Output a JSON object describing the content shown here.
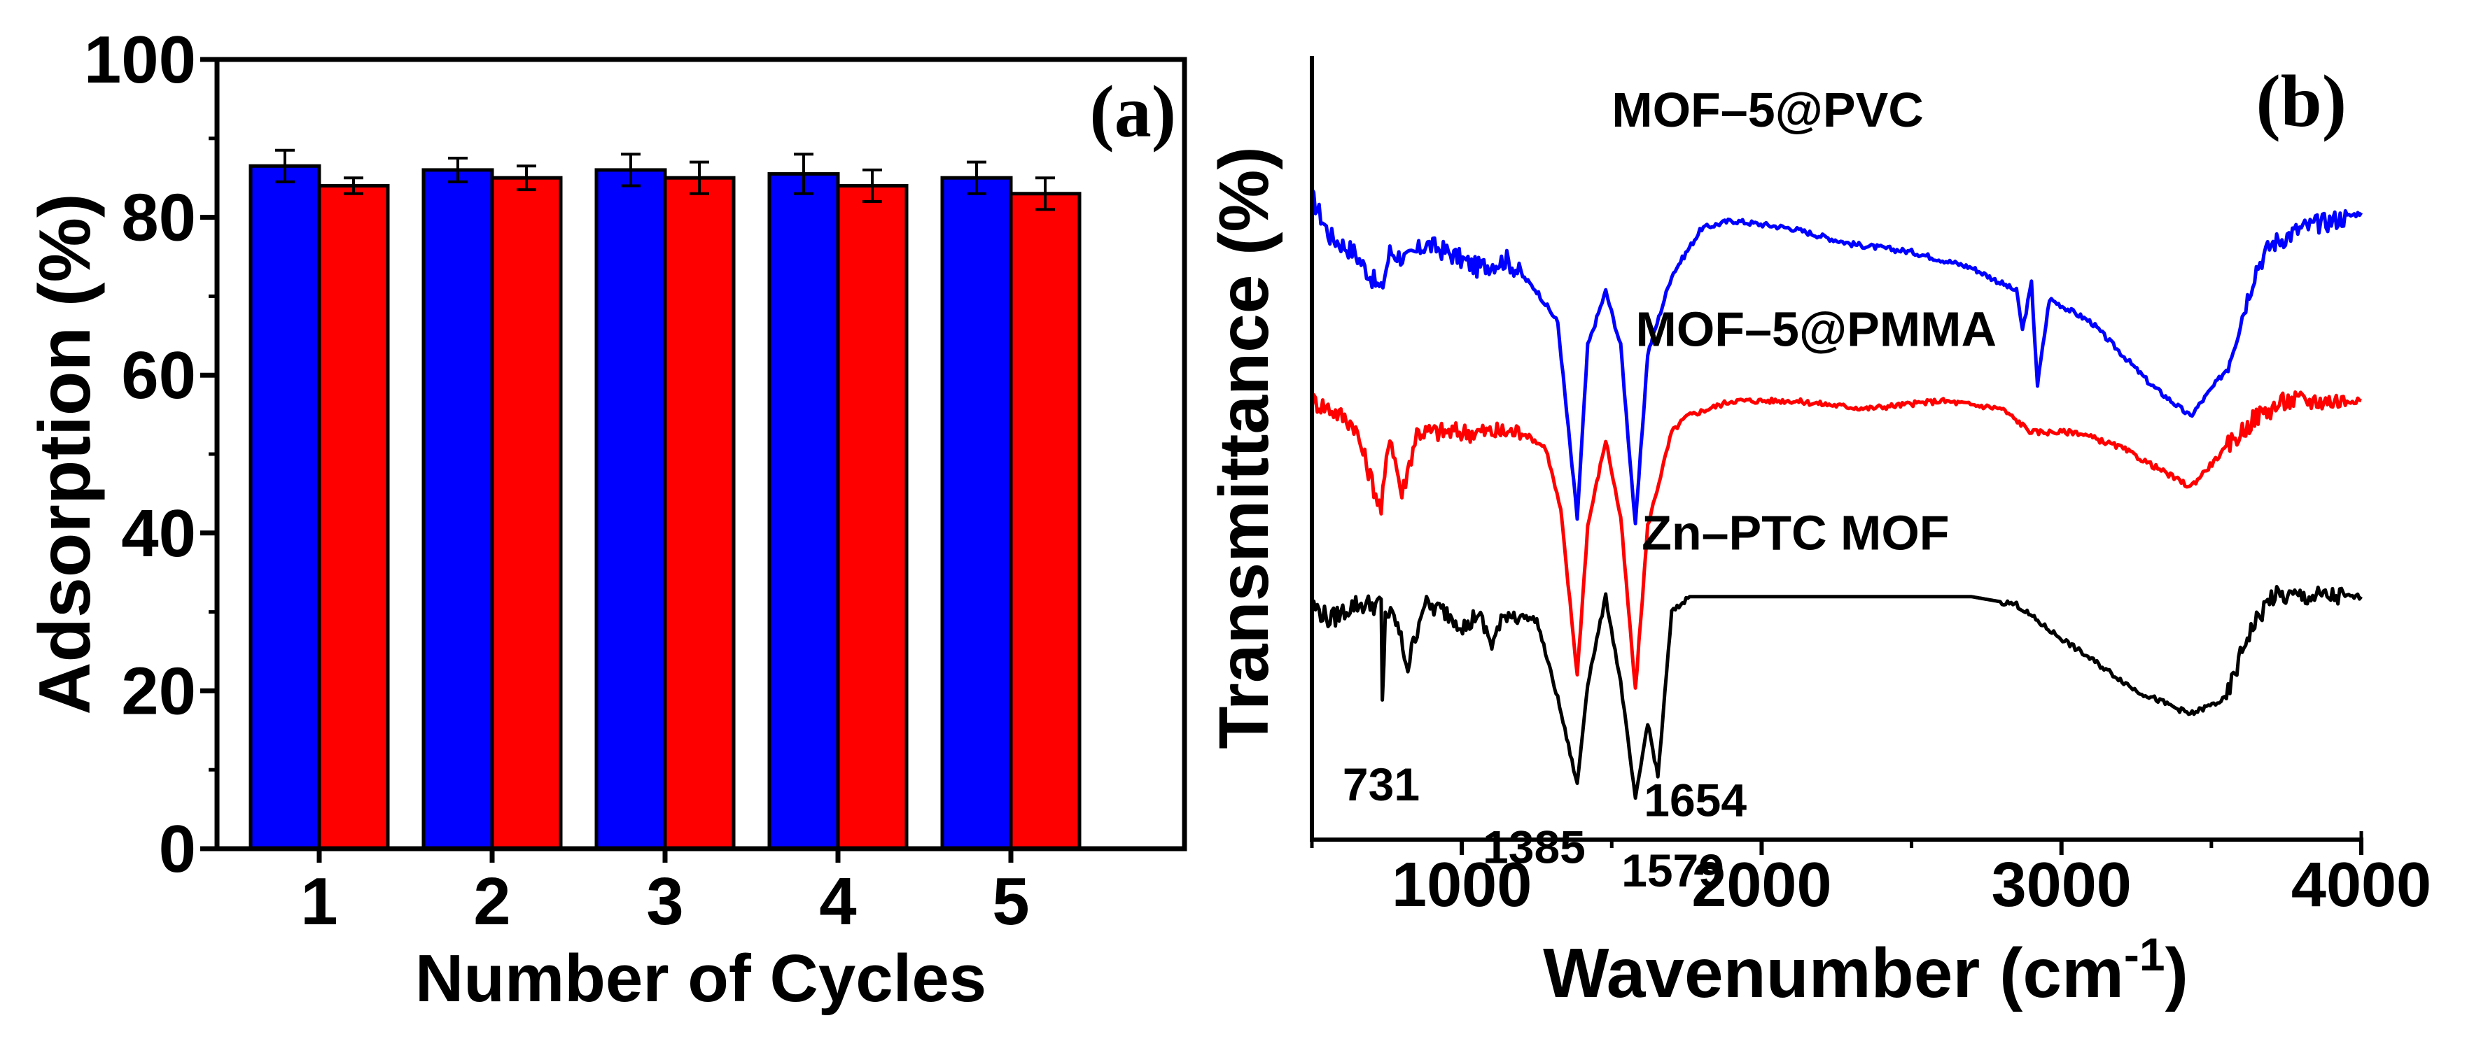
{
  "chart_data": [
    {
      "type": "bar",
      "panel_label": "(a)",
      "xlabel": "Number of Cycles",
      "ylabel": "Adsorption (%)",
      "ylim": [
        0,
        100
      ],
      "yticks": [
        "0",
        "20",
        "40",
        "60",
        "80",
        "100"
      ],
      "categories": [
        "1",
        "2",
        "3",
        "4",
        "5"
      ],
      "series": [
        {
          "name": "series-blue",
          "color": "#0000ff",
          "values": [
            86.5,
            86,
            86,
            85.5,
            85
          ],
          "errors": [
            2,
            1.5,
            2,
            2.5,
            2
          ]
        },
        {
          "name": "series-red",
          "color": "#ff0000",
          "values": [
            84,
            85,
            85,
            84,
            83
          ],
          "errors": [
            1,
            1.5,
            2,
            2,
            2
          ]
        }
      ]
    },
    {
      "type": "line",
      "panel_label": "(b)",
      "xlabel": "Wavenumber (cm",
      "xlabel_sup": "-1",
      "xlabel_close": ")",
      "ylabel": "Transmittance (%)",
      "xlim": [
        500,
        4000
      ],
      "xticks": [
        "1000",
        "2000",
        "3000",
        "4000"
      ],
      "series": [
        {
          "name": "MOF–5@PVC",
          "label": "MOF–5@PVC",
          "color": "#0000ff",
          "baseline": 81,
          "points": [
            [
              500,
              82
            ],
            [
              560,
              77
            ],
            [
              640,
              75
            ],
            [
              731,
              70
            ],
            [
              760,
              75
            ],
            [
              820,
              74
            ],
            [
              880,
              76
            ],
            [
              950,
              75
            ],
            [
              1050,
              73
            ],
            [
              1150,
              74
            ],
            [
              1250,
              70
            ],
            [
              1320,
              66
            ],
            [
              1385,
              41
            ],
            [
              1420,
              63
            ],
            [
              1480,
              70
            ],
            [
              1530,
              63
            ],
            [
              1579,
              40
            ],
            [
              1620,
              62
            ],
            [
              1700,
              72
            ],
            [
              1800,
              78
            ],
            [
              1900,
              79
            ],
            [
              2100,
              78
            ],
            [
              2300,
              76
            ],
            [
              2500,
              75
            ],
            [
              2700,
              73
            ],
            [
              2850,
              70
            ],
            [
              2870,
              65
            ],
            [
              2900,
              71
            ],
            [
              2920,
              58
            ],
            [
              2960,
              69
            ],
            [
              3100,
              66
            ],
            [
              3300,
              58
            ],
            [
              3430,
              54
            ],
            [
              3550,
              60
            ],
            [
              3650,
              73
            ],
            [
              3700,
              76
            ],
            [
              3800,
              78
            ],
            [
              3900,
              79
            ],
            [
              4000,
              80
            ]
          ]
        },
        {
          "name": "MOF–5@PMMA",
          "label": "MOF–5@PMMA",
          "color": "#ff0000",
          "baseline": 56,
          "points": [
            [
              500,
              56
            ],
            [
              560,
              55
            ],
            [
              640,
              53
            ],
            [
              731,
              42
            ],
            [
              760,
              52
            ],
            [
              800,
              44
            ],
            [
              850,
              52
            ],
            [
              950,
              52
            ],
            [
              1100,
              52
            ],
            [
              1200,
              52
            ],
            [
              1280,
              50
            ],
            [
              1330,
              42
            ],
            [
              1385,
              21
            ],
            [
              1420,
              40
            ],
            [
              1480,
              51
            ],
            [
              1530,
              41
            ],
            [
              1579,
              19
            ],
            [
              1620,
              40
            ],
            [
              1700,
              52
            ],
            [
              1750,
              54
            ],
            [
              1900,
              56
            ],
            [
              2100,
              56
            ],
            [
              2350,
              55
            ],
            [
              2600,
              56
            ],
            [
              2800,
              55
            ],
            [
              2900,
              52
            ],
            [
              3050,
              52
            ],
            [
              3200,
              50
            ],
            [
              3430,
              45
            ],
            [
              3550,
              50
            ],
            [
              3650,
              54
            ],
            [
              3750,
              56
            ],
            [
              4000,
              56
            ]
          ]
        },
        {
          "name": "Zn–PTC MOF",
          "label": "Zn–PTC MOF",
          "color": "#000000",
          "baseline": 31,
          "points": [
            [
              500,
              30
            ],
            [
              560,
              28
            ],
            [
              640,
              30
            ],
            [
              731,
              30
            ],
            [
              735,
              17
            ],
            [
              745,
              29
            ],
            [
              780,
              28
            ],
            [
              820,
              22
            ],
            [
              870,
              30
            ],
            [
              950,
              29
            ],
            [
              1020,
              27
            ],
            [
              1050,
              29
            ],
            [
              1100,
              25
            ],
            [
              1150,
              29
            ],
            [
              1250,
              28
            ],
            [
              1320,
              18
            ],
            [
              1385,
              7
            ],
            [
              1420,
              20
            ],
            [
              1480,
              31
            ],
            [
              1530,
              20
            ],
            [
              1579,
              5
            ],
            [
              1620,
              15
            ],
            [
              1654,
              8
            ],
            [
              1700,
              29
            ],
            [
              1760,
              31
            ],
            [
              2000,
              31
            ],
            [
              2400,
              31
            ],
            [
              2700,
              31
            ],
            [
              2850,
              30
            ],
            [
              2950,
              27
            ],
            [
              3100,
              23
            ],
            [
              3250,
              19
            ],
            [
              3430,
              16
            ],
            [
              3550,
              18
            ],
            [
              3620,
              26
            ],
            [
              3700,
              31
            ],
            [
              4000,
              31
            ]
          ]
        }
      ],
      "annotations": [
        {
          "text": "731",
          "x": 731
        },
        {
          "text": "1385",
          "x": 1385
        },
        {
          "text": "1579",
          "x": 1579
        },
        {
          "text": "1654",
          "x": 1654
        }
      ]
    }
  ]
}
